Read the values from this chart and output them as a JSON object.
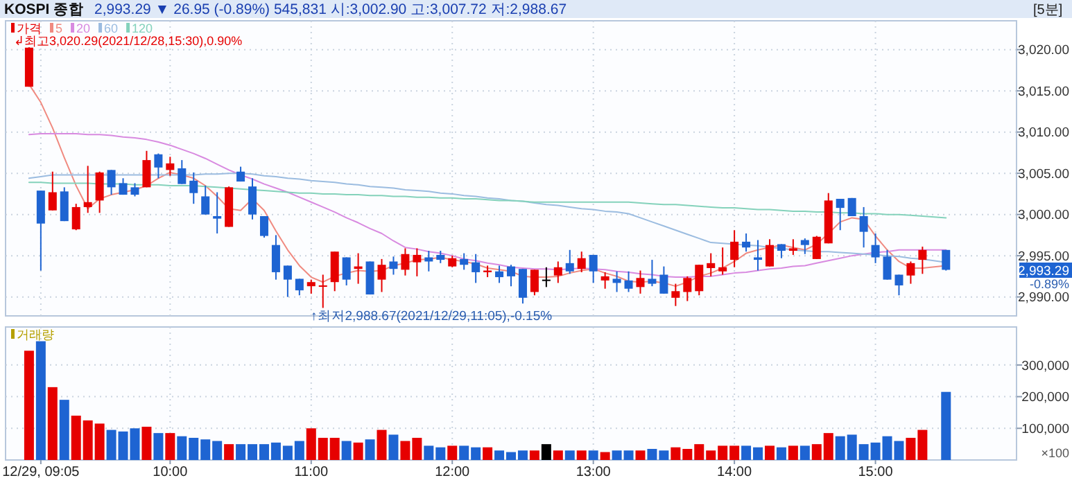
{
  "chart_data": [
    {
      "type": "candlestick",
      "title": "KOSPI 종합",
      "subtitle": "2,993.29 ▼ 26.95 (-0.89%)   545,831   시:3,002.90   고:3,007.72   저:2,988.67",
      "categories": [
        null,
        null,
        null,
        null,
        null,
        null,
        null,
        null,
        null,
        null,
        null,
        null,
        null,
        null,
        null,
        null,
        null,
        null,
        null,
        null,
        null,
        null,
        null,
        null,
        null,
        null,
        null,
        null,
        null,
        null,
        null,
        null,
        null,
        null,
        null,
        null,
        null,
        null,
        null,
        null,
        null,
        null,
        null,
        null,
        null,
        null,
        null,
        null,
        null,
        null,
        null,
        null,
        null,
        null,
        null,
        null,
        null,
        null,
        null,
        null,
        null,
        null,
        null,
        null,
        null,
        null,
        null,
        null,
        null,
        null,
        null,
        null,
        null,
        null,
        null,
        null,
        null,
        null,
        null
      ],
      "ylim": [
        2987.7,
        3023.5
      ],
      "yticks": [
        {
          "value": 2990,
          "label": "2,990.00"
        },
        {
          "value": 2995,
          "label": "2,995.00"
        },
        {
          "value": 3000,
          "label": "3,000.00"
        },
        {
          "value": 3005,
          "label": "3,005.00"
        },
        {
          "value": 3010,
          "label": "3,010.00"
        },
        {
          "value": 3015,
          "label": "3,015.00"
        },
        {
          "value": 3020,
          "label": "3,020.00"
        }
      ],
      "grid": true,
      "legend": "top left",
      "tick_labels": "y",
      "series": [
        {
          "name": "가격",
          "type": "candlestick",
          "color": "#e60000",
          "ohlc": [
            [
              3015.5,
              3020.29,
              3015.5,
              3020.24
            ],
            [
              3002.9,
              3002.9,
              2993.2,
              2998.9
            ],
            [
              3000.5,
              3005.2,
              3000.5,
              3002.7
            ],
            [
              3002.8,
              3003.3,
              2999.2,
              2999.2
            ],
            [
              2998.2,
              3001.3,
              2998.1,
              3000.9
            ],
            [
              3000.9,
              3005.9,
              3000.2,
              3001.5
            ],
            [
              3001.7,
              3005.2,
              3000.2,
              3005.1
            ],
            [
              3005.4,
              3005.4,
              3002.4,
              3003.3
            ],
            [
              3003.8,
              3004.4,
              3002.4,
              3002.4
            ],
            [
              3003.3,
              3003.8,
              3002.2,
              3002.4
            ],
            [
              3003.3,
              3007.72,
              3003.3,
              3006.6
            ],
            [
              3007.3,
              3007.4,
              3004.4,
              3005.7
            ],
            [
              3005.4,
              3007.0,
              3004.7,
              3006.2
            ],
            [
              3005.6,
              3006.6,
              3003.7,
              3003.7
            ],
            [
              3004.1,
              3005.1,
              3001.3,
              3002.6
            ],
            [
              3002.2,
              3003.5,
              3000.0,
              3000.0
            ],
            [
              2999.8,
              3002.7,
              2997.7,
              2999.5
            ],
            [
              2998.5,
              3003.4,
              2998.5,
              3003.3
            ],
            [
              3005.2,
              3005.8,
              3004.0,
              3004.0
            ],
            [
              3003.4,
              3004.4,
              2999.4,
              3000.0
            ],
            [
              2999.8,
              2999.8,
              2997.2,
              2997.4
            ],
            [
              2996.3,
              2997.5,
              2992.1,
              2993.0
            ],
            [
              2993.8,
              2993.8,
              2990.0,
              2992.1
            ],
            [
              2992.2,
              2992.2,
              2990.2,
              2990.8
            ],
            [
              2991.3,
              2992.1,
              2990.4,
              2991.8
            ],
            [
              2991.3,
              2992.7,
              2988.67,
              2991.4
            ],
            [
              2991.8,
              2995.5,
              2990.7,
              2995.5
            ],
            [
              2994.8,
              2994.8,
              2991.4,
              2992.1
            ],
            [
              2993.4,
              2995.3,
              2991.6,
              2993.7
            ],
            [
              2994.3,
              2994.3,
              2990.3,
              2990.3
            ],
            [
              2992.1,
              2994.6,
              2990.6,
              2993.9
            ],
            [
              2994.3,
              2994.9,
              2992.7,
              2993.4
            ],
            [
              2993.3,
              2995.9,
              2992.6,
              2995.2
            ],
            [
              2994.2,
              2995.9,
              2992.5,
              2995.1
            ],
            [
              2994.8,
              2995.6,
              2993.1,
              2994.3
            ],
            [
              2995.1,
              2995.6,
              2994.1,
              2994.5
            ],
            [
              2993.7,
              2995.0,
              2993.6,
              2994.7
            ],
            [
              2994.6,
              2995.3,
              2993.3,
              2993.9
            ],
            [
              2994.2,
              2995.2,
              2991.7,
              2993.0
            ],
            [
              2993.0,
              2993.8,
              2992.4,
              2993.2
            ],
            [
              2993.1,
              2993.8,
              2991.7,
              2992.4
            ],
            [
              2993.7,
              2993.9,
              2991.3,
              2992.5
            ],
            [
              2993.4,
              2993.4,
              2989.2,
              2989.9
            ],
            [
              2990.6,
              2993.3,
              2990.2,
              2993.3
            ],
            [
              2992.1,
              2993.6,
              2991.2,
              2992.1
            ],
            [
              2992.6,
              2994.3,
              2991.7,
              2993.6
            ],
            [
              2994.1,
              2995.7,
              2992.8,
              2993.1
            ],
            [
              2993.4,
              2995.5,
              2993.0,
              2994.7
            ],
            [
              2995.1,
              2995.1,
              2991.7,
              2993.1
            ],
            [
              2992.0,
              2993.0,
              2991.0,
              2992.5
            ],
            [
              2992.2,
              2993.1,
              2990.6,
              2991.7
            ],
            [
              2992.0,
              2993.1,
              2990.6,
              2991.0
            ],
            [
              2991.2,
              2993.2,
              2990.4,
              2992.3
            ],
            [
              2992.2,
              2994.5,
              2991.3,
              2991.6
            ],
            [
              2992.7,
              2993.7,
              2990.4,
              2990.4
            ],
            [
              2989.9,
              2991.6,
              2988.9,
              2990.7
            ],
            [
              2990.6,
              2992.5,
              2989.5,
              2992.3
            ],
            [
              2990.7,
              2993.9,
              2990.2,
              2993.9
            ],
            [
              2993.5,
              2995.3,
              2992.5,
              2994.1
            ],
            [
              2993.1,
              2996.0,
              2992.7,
              2993.6
            ],
            [
              2994.5,
              2998.1,
              2993.6,
              2996.7
            ],
            [
              2996.7,
              2997.7,
              2995.5,
              2996.0
            ],
            [
              2994.8,
              2996.9,
              2993.2,
              2994.5
            ],
            [
              2993.7,
              2997.0,
              2993.7,
              2996.3
            ],
            [
              2996.4,
              2996.4,
              2994.7,
              2995.6
            ],
            [
              2995.6,
              2997.0,
              2995.1,
              2995.9
            ],
            [
              2996.9,
              2997.1,
              2995.2,
              2996.3
            ],
            [
              2994.6,
              2997.4,
              2994.6,
              2997.3
            ],
            [
              2996.5,
              3002.6,
              2996.5,
              3001.7
            ],
            [
              3001.9,
              3001.9,
              2998.1,
              3000.8
            ],
            [
              3002.0,
              3002.0,
              2999.8,
              2999.8
            ],
            [
              2999.8,
              3000.9,
              2996.0,
              2997.9
            ],
            [
              2996.3,
              2997.7,
              2994.1,
              2994.8
            ],
            [
              2994.9,
              2995.7,
              2992.1,
              2992.1
            ],
            [
              2992.7,
              2992.7,
              2990.2,
              2991.4
            ],
            [
              2992.6,
              2994.3,
              2991.6,
              2994.1
            ],
            [
              2994.5,
              2996.1,
              2992.8,
              2995.7
            ],
            null,
            [
              2995.7,
              2995.7,
              2993.2,
              2993.29
            ]
          ],
          "colors": [
            "#e60000",
            "#1e64d2",
            "#e60000",
            "#1e64d2",
            "#e60000",
            "#e60000",
            "#e60000",
            "#1e64d2",
            "#1e64d2",
            "#1e64d2",
            "#e60000",
            "#1e64d2",
            "#e60000",
            "#1e64d2",
            "#1e64d2",
            "#1e64d2",
            "#1e64d2",
            "#e60000",
            "#1e64d2",
            "#1e64d2",
            "#1e64d2",
            "#1e64d2",
            "#1e64d2",
            "#1e64d2",
            "#e60000",
            "#e60000",
            "#e60000",
            "#1e64d2",
            "#e60000",
            "#1e64d2",
            "#e60000",
            "#1e64d2",
            "#e60000",
            "#e60000",
            "#1e64d2",
            "#1e64d2",
            "#e60000",
            "#1e64d2",
            "#1e64d2",
            "#e60000",
            "#1e64d2",
            "#1e64d2",
            "#1e64d2",
            "#e60000",
            "#000000",
            "#e60000",
            "#1e64d2",
            "#e60000",
            "#1e64d2",
            "#e60000",
            "#1e64d2",
            "#1e64d2",
            "#e60000",
            "#1e64d2",
            "#1e64d2",
            "#e60000",
            "#e60000",
            "#e60000",
            "#e60000",
            "#e60000",
            "#e60000",
            "#1e64d2",
            "#1e64d2",
            "#e60000",
            "#1e64d2",
            "#e60000",
            "#1e64d2",
            "#e60000",
            "#e60000",
            "#1e64d2",
            "#1e64d2",
            "#1e64d2",
            "#1e64d2",
            "#1e64d2",
            "#1e64d2",
            "#e60000",
            "#e60000",
            null,
            "#1e64d2"
          ]
        },
        {
          "name": "5",
          "type": "line",
          "color": "#f08a80",
          "values": [
            3015.8,
            3013.6,
            3010.5,
            3006.9,
            3003.5,
            3000.7,
            3001.9,
            3002.4,
            3002.7,
            3003.0,
            3003.5,
            3004.4,
            3005.1,
            3004.8,
            3004.4,
            3003.5,
            3002.2,
            3000.7,
            3000.5,
            3001.9,
            3000.5,
            2998.0,
            2995.7,
            2993.8,
            2992.4,
            2991.8,
            2992.5,
            2992.9,
            2993.2,
            2993.1,
            2993.2,
            2993.8,
            2994.1,
            2994.5,
            2994.6,
            2994.8,
            2994.5,
            2994.3,
            2994.0,
            2993.5,
            2993.3,
            2993.1,
            2992.5,
            2992.4,
            2992.4,
            2992.5,
            2992.9,
            2993.2,
            2993.4,
            2992.9,
            2992.5,
            2991.9,
            2991.8,
            2991.9,
            2991.7,
            2991.3,
            2991.8,
            2992.5,
            2992.9,
            2993.5,
            2994.3,
            2995.3,
            2995.7,
            2996.0,
            2996.3,
            2996.0,
            2995.7,
            2996.4,
            2997.7,
            2999.1,
            2999.6,
            2999.4,
            2997.4,
            2995.7,
            2994.3,
            2993.5,
            2993.5,
            null,
            2993.8
          ]
        },
        {
          "name": "20",
          "type": "line",
          "color": "#d88ae0",
          "values": [
            3009.7,
            3009.8,
            3009.8,
            3009.8,
            3009.8,
            3009.7,
            3009.7,
            3009.6,
            3009.4,
            3009.3,
            3009.1,
            3008.8,
            3008.4,
            3007.9,
            3007.4,
            3006.8,
            3006.1,
            3005.4,
            3004.8,
            3004.3,
            3003.7,
            3003.2,
            3002.7,
            3002.1,
            3001.5,
            3000.9,
            3000.3,
            2999.6,
            2999.0,
            2998.3,
            2997.7,
            2996.8,
            2996.0,
            2995.8,
            2995.5,
            2995.3,
            2995.0,
            2994.6,
            2994.4,
            2994.1,
            2993.9,
            2993.6,
            2993.5,
            2993.4,
            2993.4,
            2993.3,
            2993.4,
            2993.5,
            2993.4,
            2993.3,
            2993.1,
            2993.0,
            2992.8,
            2992.7,
            2992.5,
            2992.4,
            2992.4,
            2992.5,
            2992.5,
            2992.7,
            2992.9,
            2993.0,
            2993.2,
            2993.4,
            2993.5,
            2993.7,
            2993.8,
            2994.1,
            2994.4,
            2994.7,
            2995.0,
            2995.2,
            2995.4,
            2995.5,
            2995.7,
            2995.7,
            2995.7,
            null,
            2995.7
          ]
        },
        {
          "name": "60",
          "type": "line",
          "color": "#9bbce0",
          "values": [
            3004.4,
            3004.6,
            3004.8,
            3004.8,
            3004.8,
            3004.8,
            3004.8,
            3004.8,
            3004.8,
            3004.8,
            3004.8,
            3004.8,
            3004.8,
            3004.8,
            3004.8,
            3004.9,
            3004.9,
            3005.0,
            3005.0,
            3004.9,
            3004.7,
            3004.6,
            3004.4,
            3004.3,
            3004.1,
            3004.0,
            3003.9,
            3003.7,
            3003.6,
            3003.4,
            3003.3,
            3003.2,
            3003.0,
            3002.9,
            3002.8,
            3002.6,
            3002.5,
            3002.3,
            3002.2,
            3002.0,
            3001.9,
            3001.7,
            3001.6,
            3001.4,
            3001.2,
            3001.1,
            3000.9,
            3000.7,
            3000.6,
            3000.4,
            3000.3,
            3000.1,
            2999.6,
            2999.1,
            2998.6,
            2998.1,
            2997.6,
            2997.1,
            2996.6,
            2996.5,
            2996.4,
            2996.3,
            2996.2,
            2996.0,
            2995.9,
            2995.7,
            2995.6,
            2995.5,
            2995.5,
            2995.4,
            2995.3,
            2995.2,
            2995.1,
            2995.0,
            2994.9,
            2994.7,
            2994.6,
            null,
            2994.2
          ]
        },
        {
          "name": "120",
          "type": "line",
          "color": "#84d2bb",
          "values": [
            3003.9,
            3003.9,
            3003.8,
            3003.8,
            3003.8,
            3003.8,
            3003.7,
            3003.7,
            3003.7,
            3003.6,
            3003.6,
            3003.6,
            3003.5,
            3003.5,
            3003.5,
            3003.4,
            3003.3,
            3003.2,
            3003.1,
            3003.0,
            3002.9,
            3002.8,
            3002.7,
            3002.6,
            3002.6,
            3002.5,
            3002.5,
            3002.4,
            3002.4,
            3002.3,
            3002.3,
            3002.2,
            3002.2,
            3002.1,
            3002.1,
            3002.0,
            3002.0,
            3001.9,
            3001.9,
            3001.8,
            3001.7,
            3001.7,
            3001.6,
            3001.5,
            3001.5,
            3001.5,
            3001.5,
            3001.5,
            3001.5,
            3001.5,
            3001.5,
            3001.5,
            3001.4,
            3001.3,
            3001.2,
            3001.2,
            3001.1,
            3001.0,
            3000.9,
            3000.8,
            3000.8,
            3000.7,
            3000.6,
            3000.6,
            3000.5,
            3000.4,
            3000.4,
            3000.3,
            3000.3,
            3000.2,
            3000.2,
            3000.1,
            3000.1,
            3000.0,
            3000.0,
            2999.9,
            2999.8,
            null,
            2999.6
          ]
        }
      ],
      "annotations": [
        "↲최고3,020.29(2021/12/28,15:30),0.90%",
        "↑최저2,988.67(2021/12/29,11:05),-0.15%",
        "2,993.29",
        "-0.89%",
        "[5분]"
      ]
    },
    {
      "type": "bar",
      "categories": [
        null,
        "12/29, 09:05",
        null,
        null,
        null,
        null,
        null,
        null,
        null,
        null,
        null,
        null,
        "10:00",
        null,
        null,
        null,
        null,
        null,
        null,
        null,
        null,
        null,
        null,
        null,
        "11:00",
        null,
        null,
        null,
        null,
        null,
        null,
        null,
        null,
        null,
        null,
        null,
        "12:00",
        null,
        null,
        null,
        null,
        null,
        null,
        null,
        null,
        null,
        null,
        null,
        "13:00",
        null,
        null,
        null,
        null,
        null,
        null,
        null,
        null,
        null,
        null,
        null,
        "14:00",
        null,
        null,
        null,
        null,
        null,
        null,
        null,
        null,
        null,
        null,
        null,
        "15:00",
        null,
        null,
        null,
        null,
        null,
        null
      ],
      "ylim": [
        0,
        420000
      ],
      "yticks": [
        {
          "value": 100000,
          "label": "100,000"
        },
        {
          "value": 200000,
          "label": "200,000"
        },
        {
          "value": 300000,
          "label": "300,000"
        }
      ],
      "grid": true,
      "legend": "top left",
      "series": [
        {
          "name": "거래량",
          "colors": [
            "#e60000",
            "#1e64d2",
            "#e60000",
            "#1e64d2",
            "#e60000",
            "#e60000",
            "#e60000",
            "#1e64d2",
            "#1e64d2",
            "#1e64d2",
            "#e60000",
            "#1e64d2",
            "#e60000",
            "#1e64d2",
            "#1e64d2",
            "#1e64d2",
            "#1e64d2",
            "#e60000",
            "#1e64d2",
            "#1e64d2",
            "#1e64d2",
            "#1e64d2",
            "#1e64d2",
            "#1e64d2",
            "#e60000",
            "#e60000",
            "#e60000",
            "#1e64d2",
            "#e60000",
            "#1e64d2",
            "#e60000",
            "#1e64d2",
            "#e60000",
            "#e60000",
            "#1e64d2",
            "#1e64d2",
            "#e60000",
            "#1e64d2",
            "#1e64d2",
            "#e60000",
            "#1e64d2",
            "#1e64d2",
            "#1e64d2",
            "#e60000",
            "#000000",
            "#e60000",
            "#1e64d2",
            "#e60000",
            "#1e64d2",
            "#e60000",
            "#1e64d2",
            "#1e64d2",
            "#e60000",
            "#1e64d2",
            "#1e64d2",
            "#e60000",
            "#e60000",
            "#e60000",
            "#e60000",
            "#e60000",
            "#e60000",
            "#1e64d2",
            "#1e64d2",
            "#e60000",
            "#1e64d2",
            "#e60000",
            "#1e64d2",
            "#e60000",
            "#e60000",
            "#1e64d2",
            "#1e64d2",
            "#1e64d2",
            "#1e64d2",
            "#1e64d2",
            "#1e64d2",
            "#e60000",
            "#e60000",
            null,
            "#1e64d2"
          ],
          "values": [
            345000,
            375000,
            230000,
            190000,
            140000,
            125000,
            115000,
            95000,
            90000,
            100000,
            105000,
            85000,
            85000,
            75000,
            70000,
            65000,
            60000,
            50000,
            50000,
            50000,
            50000,
            55000,
            45000,
            60000,
            100000,
            70000,
            70000,
            60000,
            55000,
            65000,
            95000,
            80000,
            60000,
            70000,
            45000,
            40000,
            45000,
            45000,
            40000,
            40000,
            30000,
            25000,
            30000,
            30000,
            50000,
            30000,
            30000,
            30000,
            30000,
            25000,
            30000,
            30000,
            30000,
            35000,
            30000,
            40000,
            35000,
            50000,
            30000,
            45000,
            45000,
            45000,
            40000,
            45000,
            40000,
            45000,
            45000,
            50000,
            85000,
            75000,
            80000,
            50000,
            55000,
            75000,
            60000,
            70000,
            95000,
            null,
            215000
          ]
        }
      ],
      "annotations": [
        "×100"
      ]
    }
  ]
}
